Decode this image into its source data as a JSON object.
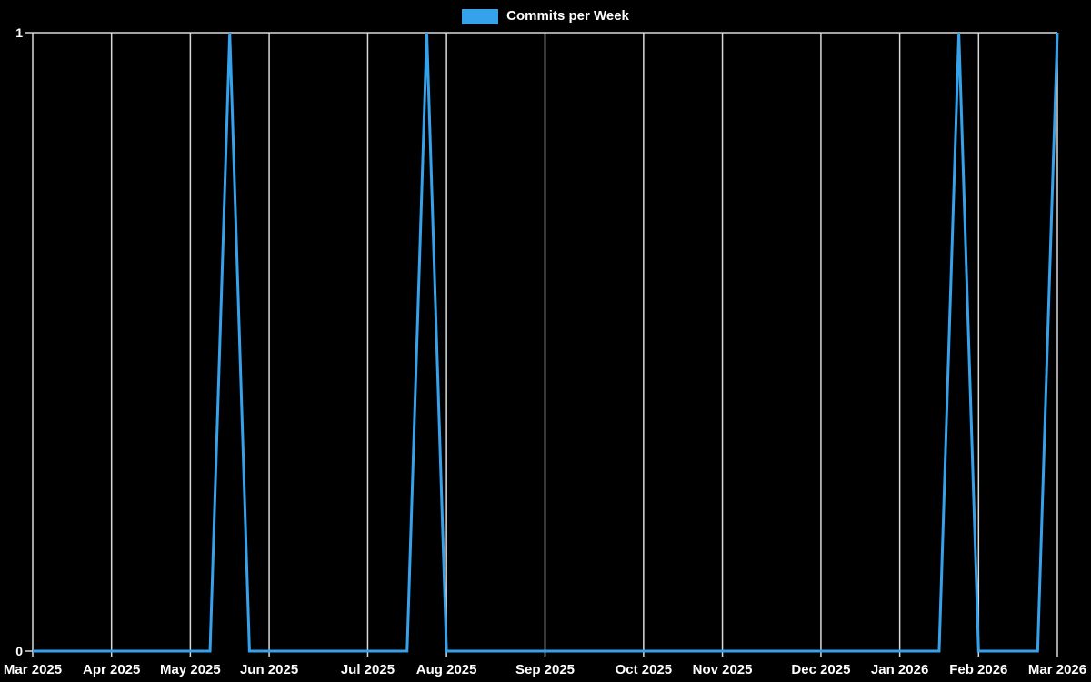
{
  "legend": {
    "label": "Commits per Week"
  },
  "chart_data": {
    "type": "line",
    "title": "",
    "legend_position": "top",
    "series": [
      {
        "name": "Commits per Week",
        "color": "#36a2eb",
        "values": [
          0,
          0,
          0,
          0,
          0,
          0,
          0,
          0,
          0,
          0,
          1,
          0,
          0,
          0,
          0,
          0,
          0,
          0,
          0,
          0,
          1,
          0,
          0,
          0,
          0,
          0,
          0,
          0,
          0,
          0,
          0,
          0,
          0,
          0,
          0,
          0,
          0,
          0,
          0,
          0,
          0,
          0,
          0,
          0,
          0,
          0,
          0,
          1,
          0,
          0,
          0,
          0,
          1
        ]
      }
    ],
    "x_unit": "week",
    "x_weeks_range": [
      0,
      52
    ],
    "x_tick_labels": [
      "Mar 2025",
      "Apr 2025",
      "May 2025",
      "Jun 2025",
      "Jul 2025",
      "Aug 2025",
      "Sep 2025",
      "Oct 2025",
      "Nov 2025",
      "Dec 2025",
      "Jan 2026",
      "Feb 2026",
      "Mar 2026"
    ],
    "x_tick_week_index": [
      0,
      4,
      8,
      12,
      17,
      21,
      26,
      31,
      35,
      40,
      44,
      48,
      52
    ],
    "y_tick_labels": [
      "0",
      "1"
    ],
    "ylim": [
      0,
      1
    ],
    "grid": {
      "vertical_monthly": true,
      "horizontal_at_max_only": true
    },
    "colors": {
      "background": "#000000",
      "line": "#36a2eb",
      "grid": "#d9d9d9",
      "text": "#ffffff"
    }
  }
}
